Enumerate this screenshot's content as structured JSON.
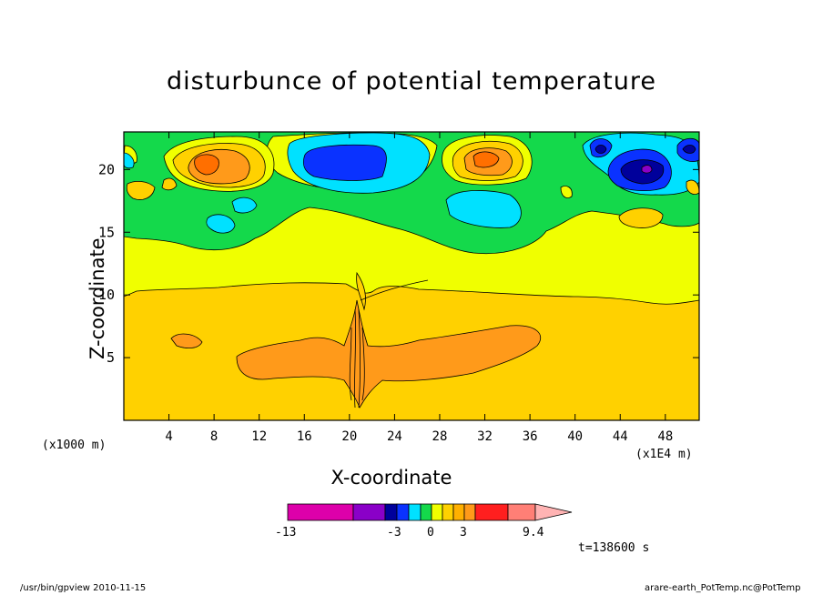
{
  "chart_data": {
    "type": "heatmap",
    "title": "disturbunce of potential temperature",
    "xlabel": "X-coordinate",
    "ylabel": "Z-coordinate",
    "x_unit_left": "(x1000 m)",
    "x_unit_right": "(x1E4 m)",
    "xlim": [
      0,
      51
    ],
    "ylim": [
      0,
      23
    ],
    "x_ticks": [
      4,
      8,
      12,
      16,
      20,
      24,
      28,
      32,
      36,
      40,
      44,
      48
    ],
    "y_ticks": [
      5,
      10,
      15,
      20
    ],
    "colorbar_ticks": [
      "-13",
      "-3",
      "0",
      "3",
      "9.4"
    ],
    "time_label": "t=138600 s",
    "palette": {
      "magenta": "#dd00aa",
      "purple": "#8a00c8",
      "navy": "#00009b",
      "blue": "#0a32ff",
      "cyan": "#00e1ff",
      "green": "#14d94b",
      "yellow": "#f0ff00",
      "orange_light": "#ffd100",
      "orange": "#ff9a1a",
      "orange_dark": "#ff6f00",
      "red": "#ff1f1f",
      "salmon": "#ff7f76",
      "pink": "#ffb3b3"
    }
  },
  "footer": {
    "left": "/usr/bin/gpview   2010-11-15",
    "right": "arare-earth_PotTemp.nc@PotTemp"
  }
}
